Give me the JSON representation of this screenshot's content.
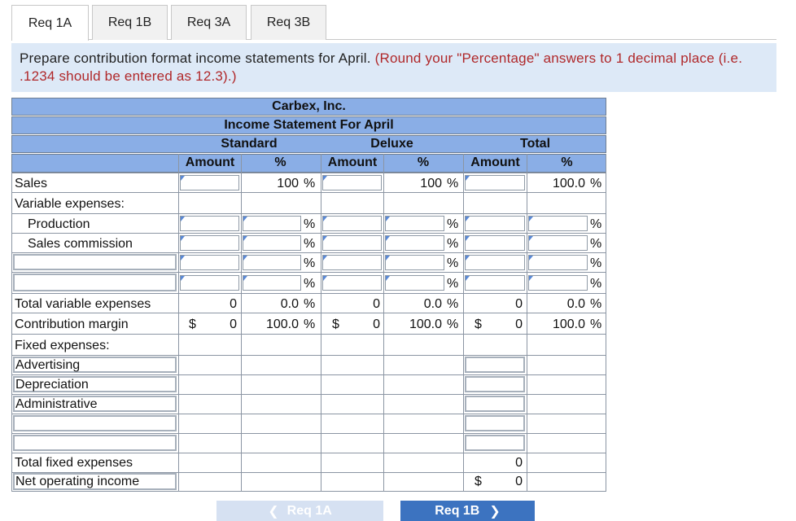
{
  "tabs": [
    {
      "label": "Req 1A"
    },
    {
      "label": "Req 1B"
    },
    {
      "label": "Req 3A"
    },
    {
      "label": "Req 3B"
    }
  ],
  "instruction": {
    "main": "Prepare contribution format income statements for April.",
    "note": "(Round your \"Percentage\" answers to 1 decimal place (i.e. .1234 should be entered as 12.3).)"
  },
  "statement": {
    "company": "Carbex, Inc.",
    "title": "Income Statement For April",
    "groups": {
      "standard": "Standard",
      "deluxe": "Deluxe",
      "total": "Total"
    },
    "col_amount": "Amount",
    "col_pct": "%",
    "pct_symbol": "%",
    "dollar": "$",
    "labels": {
      "sales": "Sales",
      "variable_expenses": "Variable expenses:",
      "production": "Production",
      "sales_commission": "Sales commission",
      "total_variable": "Total variable expenses",
      "contribution_margin": "Contribution margin",
      "fixed_expenses": "Fixed expenses:",
      "advertising": "Advertising",
      "depreciation": "Depreciation",
      "administrative": "Administrative",
      "total_fixed": "Total fixed expenses",
      "net_operating_income": "Net operating income"
    },
    "values": {
      "sales_std_pct": "100",
      "sales_dlx_pct": "100",
      "sales_tot_pct": "100.0",
      "tve_std_amt": "0",
      "tve_std_pct": "0.0",
      "tve_dlx_amt": "0",
      "tve_dlx_pct": "0.0",
      "tve_tot_amt": "0",
      "tve_tot_pct": "0.0",
      "cm_std_amt": "0",
      "cm_std_pct": "100.0",
      "cm_dlx_amt": "0",
      "cm_dlx_pct": "100.0",
      "cm_tot_amt": "0",
      "cm_tot_pct": "100.0",
      "tfe_tot_amt": "0",
      "noi_tot_amt": "0"
    }
  },
  "nav": {
    "prev_label": "Req 1A",
    "next_label": "Req 1B",
    "prev_icon": "chevron-left-icon",
    "next_icon": "chevron-right-icon"
  }
}
